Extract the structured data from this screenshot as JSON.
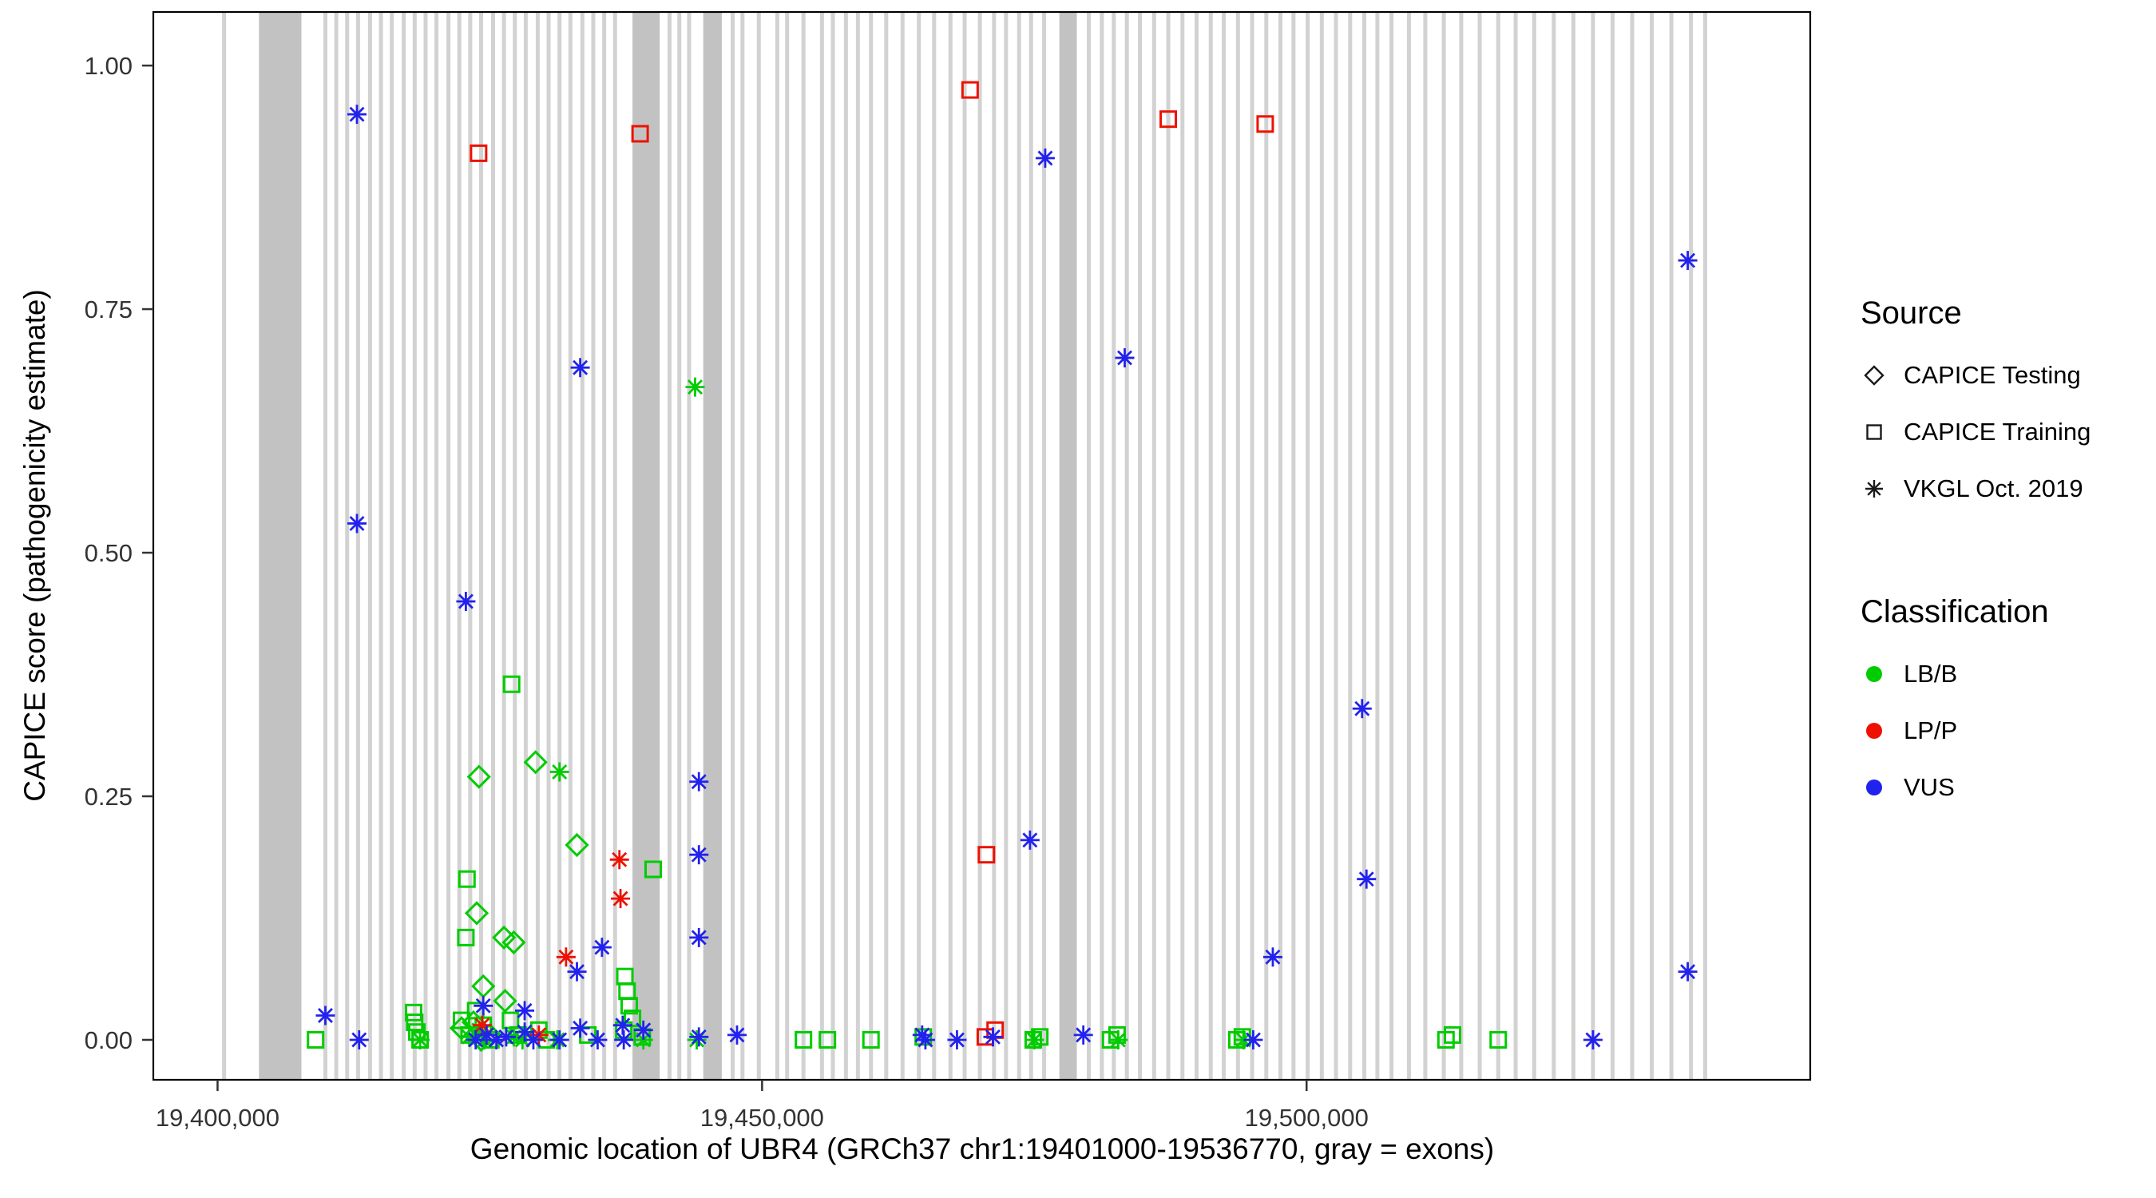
{
  "legend": {
    "source": {
      "title": "Source",
      "items": [
        {
          "label": "CAPICE Testing",
          "marker": "diamond"
        },
        {
          "label": "CAPICE Training",
          "marker": "square"
        },
        {
          "label": "VKGL Oct. 2019",
          "marker": "asterisk"
        }
      ]
    },
    "classification": {
      "title": "Classification",
      "items": [
        {
          "label": "LB/B",
          "color": "#00CC00"
        },
        {
          "label": "LP/P",
          "color": "#EE1100"
        },
        {
          "label": "VUS",
          "color": "#2222EE"
        }
      ]
    }
  },
  "chart_data": {
    "type": "scatter",
    "title": "",
    "xlabel": "Genomic location of UBR4 (GRCh37 chr1:19401000-19536770, gray = exons)",
    "ylabel": "CAPICE score (pathogenicity estimate)",
    "xlim": [
      19394100,
      19546250
    ],
    "ylim": [
      -0.041,
      1.055
    ],
    "x_ticks": [
      {
        "value": 19400000,
        "label": "19,400,000"
      },
      {
        "value": 19450000,
        "label": "19,450,000"
      },
      {
        "value": 19500000,
        "label": "19,500,000"
      }
    ],
    "y_ticks": [
      {
        "value": 0.0,
        "label": "0.00"
      },
      {
        "value": 0.25,
        "label": "0.25"
      },
      {
        "value": 0.5,
        "label": "0.50"
      },
      {
        "value": 0.75,
        "label": "0.75"
      },
      {
        "value": 1.0,
        "label": "1.00"
      }
    ],
    "grid": false,
    "legend_position": "right",
    "exon_color_thin": "#d2d2d2",
    "exon_color_wide": "#c2c2c2",
    "exons_wide": [
      [
        19403800,
        19407700
      ],
      [
        19438100,
        19440600
      ],
      [
        19444600,
        19446300
      ],
      [
        19477300,
        19478900
      ]
    ],
    "exons_thin": [
      19400600,
      19409900,
      19410900,
      19411900,
      19412900,
      19414000,
      19415000,
      19416000,
      19417100,
      19418100,
      19419100,
      19420100,
      19421200,
      19422200,
      19423200,
      19424200,
      19425300,
      19426300,
      19427300,
      19428300,
      19429400,
      19430400,
      19431400,
      19432400,
      19433500,
      19434500,
      19435500,
      19436500,
      19441500,
      19442400,
      19443300,
      19447300,
      19448200,
      19449700,
      19451400,
      19452300,
      19453800,
      19455500,
      19456500,
      19457700,
      19458800,
      19460000,
      19461400,
      19462900,
      19464400,
      19465800,
      19467300,
      19468600,
      19470000,
      19471300,
      19472400,
      19473600,
      19474700,
      19475900,
      19480000,
      19481200,
      19482300,
      19483500,
      19484700,
      19486000,
      19487300,
      19488600,
      19489900,
      19491200,
      19492400,
      19493700,
      19495000,
      19496300,
      19497600,
      19498800,
      19500100,
      19501400,
      19502700,
      19504000,
      19505300,
      19506500,
      19507800,
      19509400,
      19510900,
      19512600,
      19514200,
      19515900,
      19517600,
      19519200,
      19520900,
      19522700,
      19524500,
      19526300,
      19528100,
      19529900,
      19531700,
      19533500,
      19535300,
      19536600
    ],
    "series": [
      {
        "name": "CAPICE Testing / LB/B",
        "source": "CAPICE Testing",
        "classification": "LB/B",
        "marker": "diamond",
        "color": "#00CC00",
        "points": [
          [
            19424000,
            0.27
          ],
          [
            19429200,
            0.285
          ],
          [
            19433000,
            0.2
          ],
          [
            19423800,
            0.13
          ],
          [
            19426300,
            0.105
          ],
          [
            19427200,
            0.1
          ],
          [
            19424400,
            0.055
          ],
          [
            19426400,
            0.04
          ],
          [
            19422400,
            0.012
          ],
          [
            19423500,
            0.018
          ],
          [
            19425000,
            0.005
          ],
          [
            19424200,
            0.0
          ]
        ]
      },
      {
        "name": "CAPICE Training / LB/B",
        "source": "CAPICE Training",
        "classification": "LB/B",
        "marker": "square",
        "color": "#00CC00",
        "points": [
          [
            19427000,
            0.365
          ],
          [
            19440000,
            0.175
          ],
          [
            19422900,
            0.165
          ],
          [
            19422800,
            0.105
          ],
          [
            19437400,
            0.065
          ],
          [
            19437600,
            0.05
          ],
          [
            19437800,
            0.035
          ],
          [
            19438100,
            0.022
          ],
          [
            19409000,
            0.0
          ],
          [
            19418000,
            0.028
          ],
          [
            19418100,
            0.018
          ],
          [
            19418300,
            0.008
          ],
          [
            19418600,
            0.0
          ],
          [
            19422400,
            0.02
          ],
          [
            19423100,
            0.005
          ],
          [
            19423700,
            0.03
          ],
          [
            19424400,
            0.015
          ],
          [
            19425100,
            0.0
          ],
          [
            19426900,
            0.02
          ],
          [
            19427600,
            0.005
          ],
          [
            19429500,
            0.01
          ],
          [
            19430200,
            0.0
          ],
          [
            19434000,
            0.005
          ],
          [
            19437300,
            0.01
          ],
          [
            19439000,
            0.003
          ],
          [
            19453800,
            0.0
          ],
          [
            19456000,
            0.0
          ],
          [
            19460000,
            0.0
          ],
          [
            19464800,
            0.003
          ],
          [
            19474900,
            0.0
          ],
          [
            19475500,
            0.003
          ],
          [
            19482000,
            0.0
          ],
          [
            19482600,
            0.005
          ],
          [
            19493600,
            0.0
          ],
          [
            19494100,
            0.003
          ],
          [
            19512800,
            0.0
          ],
          [
            19513400,
            0.005
          ],
          [
            19517600,
            0.0
          ]
        ]
      },
      {
        "name": "CAPICE Training / LP/P",
        "source": "CAPICE Training",
        "classification": "LP/P",
        "marker": "square",
        "color": "#EE1100",
        "points": [
          [
            19423970,
            0.91
          ],
          [
            19438800,
            0.93
          ],
          [
            19469100,
            0.975
          ],
          [
            19487300,
            0.945
          ],
          [
            19496200,
            0.94
          ],
          [
            19470600,
            0.19
          ],
          [
            19471400,
            0.01
          ],
          [
            19470500,
            0.003
          ]
        ]
      },
      {
        "name": "VKGL Oct. 2019 / LB/B",
        "source": "VKGL Oct. 2019",
        "classification": "LB/B",
        "marker": "asterisk",
        "color": "#00CC00",
        "points": [
          [
            19443850,
            0.67
          ],
          [
            19431400,
            0.275
          ],
          [
            19418600,
            0.0
          ],
          [
            19423100,
            0.003
          ],
          [
            19424000,
            0.01
          ],
          [
            19424500,
            0.0
          ],
          [
            19427200,
            0.003
          ],
          [
            19428000,
            0.0
          ],
          [
            19431200,
            0.0
          ],
          [
            19439100,
            0.0
          ],
          [
            19444000,
            0.0
          ],
          [
            19475000,
            0.0
          ],
          [
            19482700,
            0.0
          ],
          [
            19494200,
            0.0
          ]
        ]
      },
      {
        "name": "VKGL Oct. 2019 / LP/P",
        "source": "VKGL Oct. 2019",
        "classification": "LP/P",
        "marker": "asterisk",
        "color": "#EE1100",
        "points": [
          [
            19436900,
            0.185
          ],
          [
            19437000,
            0.145
          ],
          [
            19432000,
            0.085
          ],
          [
            19429500,
            0.005
          ],
          [
            19424300,
            0.015
          ]
        ]
      },
      {
        "name": "VKGL Oct. 2019 / VUS",
        "source": "VKGL Oct. 2019",
        "classification": "VUS",
        "marker": "asterisk",
        "color": "#2222EE",
        "points": [
          [
            19412800,
            0.95
          ],
          [
            19476000,
            0.905
          ],
          [
            19535000,
            0.8
          ],
          [
            19483300,
            0.7
          ],
          [
            19433300,
            0.69
          ],
          [
            19412800,
            0.53
          ],
          [
            19422800,
            0.45
          ],
          [
            19505100,
            0.34
          ],
          [
            19444200,
            0.265
          ],
          [
            19474600,
            0.205
          ],
          [
            19444200,
            0.19
          ],
          [
            19505500,
            0.165
          ],
          [
            19444200,
            0.105
          ],
          [
            19435300,
            0.095
          ],
          [
            19496900,
            0.085
          ],
          [
            19433000,
            0.07
          ],
          [
            19535000,
            0.07
          ],
          [
            19424400,
            0.035
          ],
          [
            19428200,
            0.03
          ],
          [
            19409900,
            0.025
          ],
          [
            19423700,
            0.0
          ],
          [
            19424700,
            0.005
          ],
          [
            19425600,
            0.0
          ],
          [
            19426500,
            0.003
          ],
          [
            19428200,
            0.008
          ],
          [
            19429000,
            0.0
          ],
          [
            19431400,
            0.0
          ],
          [
            19433300,
            0.012
          ],
          [
            19434900,
            0.0
          ],
          [
            19437200,
            0.015
          ],
          [
            19437300,
            0.0
          ],
          [
            19439100,
            0.01
          ],
          [
            19444200,
            0.003
          ],
          [
            19447700,
            0.005
          ],
          [
            19464700,
            0.005
          ],
          [
            19465000,
            0.0
          ],
          [
            19467900,
            0.0
          ],
          [
            19471200,
            0.003
          ],
          [
            19479500,
            0.005
          ],
          [
            19495100,
            0.0
          ],
          [
            19526300,
            0.0
          ],
          [
            19413000,
            0.0
          ]
        ]
      }
    ]
  }
}
